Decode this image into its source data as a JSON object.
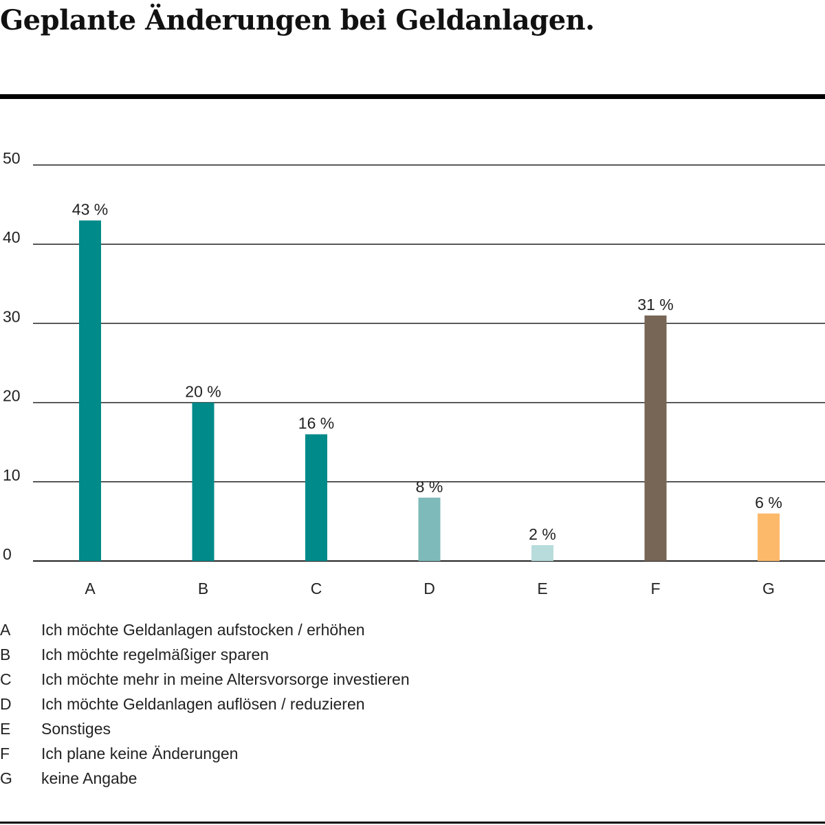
{
  "title": "Geplante Änderungen bei Geldanlagen.",
  "colors": {
    "teal": "#008a8a",
    "teal_light": "#7fbaba",
    "teal_pale": "#b8dcdc",
    "brown": "#776556",
    "orange": "#fdb96a",
    "grid": "#222222"
  },
  "chart_data": {
    "type": "bar",
    "categories": [
      "A",
      "B",
      "C",
      "D",
      "E",
      "F",
      "G"
    ],
    "values": [
      43,
      20,
      16,
      8,
      2,
      31,
      6
    ],
    "value_labels": [
      "43 %",
      "20 %",
      "16 %",
      "8 %",
      "2 %",
      "31 %",
      "6 %"
    ],
    "bar_colors": [
      "#008a8a",
      "#008a8a",
      "#008a8a",
      "#7fbaba",
      "#b8dcdc",
      "#776556",
      "#fdb96a"
    ],
    "ylim": [
      0,
      50
    ],
    "yticks": [
      0,
      10,
      20,
      30,
      40,
      50
    ],
    "grid": true,
    "title": "",
    "xlabel": "",
    "ylabel": ""
  },
  "legend": [
    {
      "key": "A",
      "text": "Ich möchte Geldanlagen aufstocken / erhöhen"
    },
    {
      "key": "B",
      "text": "Ich möchte regelmäßiger sparen"
    },
    {
      "key": "C",
      "text": "Ich möchte mehr in meine Altersvorsorge investieren"
    },
    {
      "key": "D",
      "text": "Ich möchte Geldanlagen auflösen / reduzieren"
    },
    {
      "key": "E",
      "text": "Sonstiges"
    },
    {
      "key": "F",
      "text": "Ich plane keine Änderungen"
    },
    {
      "key": "G",
      "text": "keine Angabe"
    }
  ]
}
